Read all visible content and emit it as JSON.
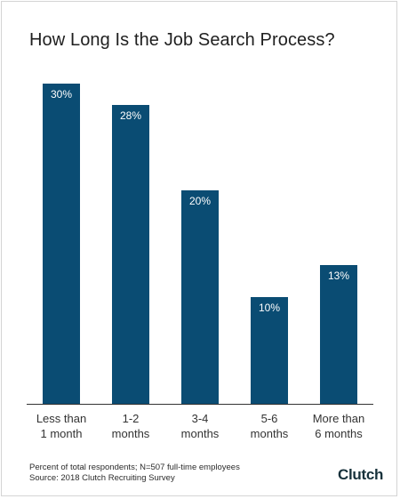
{
  "chart_data": {
    "type": "bar",
    "title": "How Long Is the Job Search Process?",
    "categories": [
      [
        "Less than",
        "1 month"
      ],
      [
        "1-2",
        "months"
      ],
      [
        "3-4",
        "months"
      ],
      [
        "5-6",
        "months"
      ],
      [
        "More than",
        "6 months"
      ]
    ],
    "values": [
      30,
      28,
      20,
      10,
      13
    ],
    "data_labels": [
      "30%",
      "28%",
      "20%",
      "10%",
      "13%"
    ],
    "ylim": [
      0,
      30
    ],
    "grid": false,
    "bar_color": "#0a4c73",
    "label_color": "#ffffff",
    "axis_color": "#333333"
  },
  "footnote": {
    "line1": "Percent of total respondents; N=507 full-time employees",
    "line2": "Source: 2018 Clutch Recruiting Survey"
  },
  "logo": {
    "text": "Clutch"
  }
}
